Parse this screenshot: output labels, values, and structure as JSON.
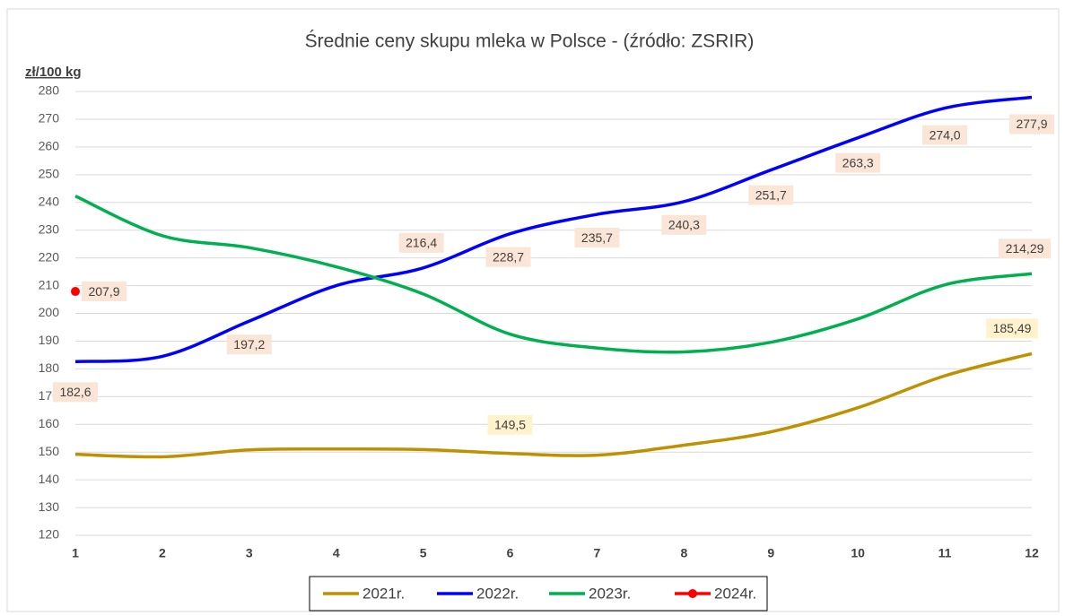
{
  "chart_data": {
    "type": "line",
    "title": "Średnie ceny skupu mleka w Polsce - (źródło: ZSRIR)",
    "y_label": "zł/100 kg",
    "x": [
      1,
      2,
      3,
      4,
      5,
      6,
      7,
      8,
      9,
      10,
      11,
      12
    ],
    "xlim": [
      1,
      12
    ],
    "xticks": [
      1,
      2,
      3,
      4,
      5,
      6,
      7,
      8,
      9,
      10,
      11,
      12
    ],
    "ylim": [
      120,
      280
    ],
    "yticks": [
      120,
      130,
      140,
      150,
      160,
      170,
      180,
      190,
      200,
      210,
      220,
      230,
      240,
      250,
      260,
      270,
      280
    ],
    "grid": true,
    "legend": "bottom",
    "series": [
      {
        "name": "2021r.",
        "color": "#bf9000",
        "values": [
          149.2,
          148.3,
          150.8,
          151.1,
          150.9,
          149.5,
          148.9,
          152.5,
          157.3,
          166.0,
          177.5,
          185.49
        ],
        "value_labels": [
          null,
          null,
          null,
          null,
          null,
          "149,5",
          null,
          null,
          null,
          null,
          null,
          "185,49"
        ]
      },
      {
        "name": "2022r.",
        "color": "#0000ff",
        "values": [
          182.6,
          184.5,
          197.2,
          210.0,
          216.4,
          228.7,
          235.7,
          240.3,
          251.7,
          263.3,
          274.0,
          277.9
        ],
        "value_labels": [
          "182,6",
          null,
          "197,2",
          null,
          "216,4",
          "228,7",
          "235,7",
          "240,3",
          "251,7",
          "263,3",
          "274,0",
          "277,9"
        ]
      },
      {
        "name": "2023r.",
        "color": "#00b050",
        "values": [
          242.3,
          228.0,
          223.7,
          216.8,
          207.0,
          192.5,
          187.5,
          186.1,
          189.6,
          198.0,
          210.3,
          214.29
        ],
        "value_labels": [
          null,
          null,
          null,
          null,
          null,
          null,
          null,
          null,
          null,
          null,
          null,
          "214,29"
        ]
      },
      {
        "name": "2024r.",
        "color": "#ff0000",
        "marker": true,
        "values": [
          207.9,
          null,
          null,
          null,
          null,
          null,
          null,
          null,
          null,
          null,
          null,
          null
        ],
        "value_labels": [
          "207,9",
          null,
          null,
          null,
          null,
          null,
          null,
          null,
          null,
          null,
          null,
          null
        ]
      }
    ]
  }
}
